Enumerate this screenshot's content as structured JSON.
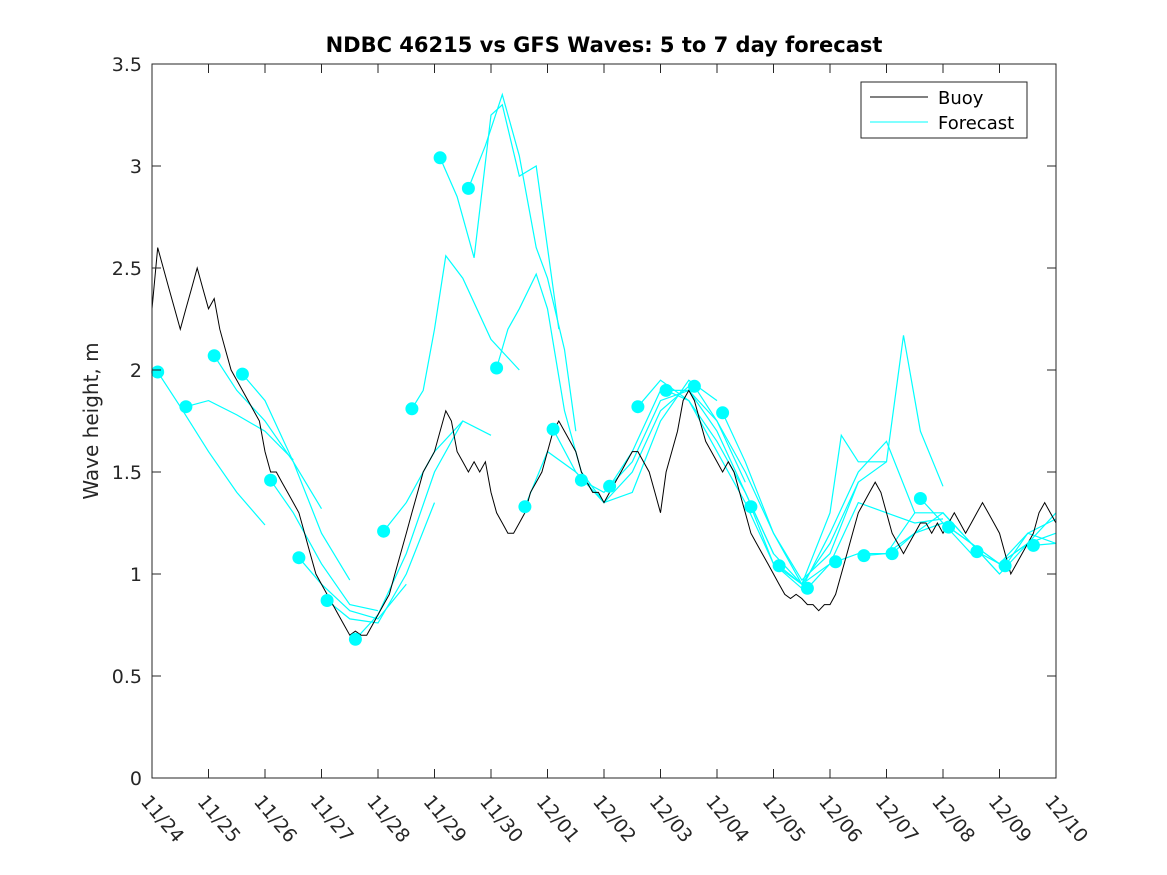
{
  "chart_data": {
    "type": "line",
    "title": "NDBC 46215 vs GFS Waves: 5 to 7 day forecast",
    "xlabel": "",
    "ylabel": "Wave height, m",
    "xlim": [
      0,
      16
    ],
    "ylim": [
      0,
      3.5
    ],
    "x_tick_values": [
      0,
      1,
      2,
      3,
      4,
      5,
      6,
      7,
      8,
      9,
      10,
      11,
      12,
      13,
      14,
      15,
      16
    ],
    "x_tick_labels": [
      "11/24",
      "11/25",
      "11/26",
      "11/27",
      "11/28",
      "11/29",
      "11/30",
      "12/01",
      "12/02",
      "12/03",
      "12/04",
      "12/05",
      "12/06",
      "12/07",
      "12/08",
      "12/09",
      "12/10"
    ],
    "y_tick_values": [
      0,
      0.5,
      1,
      1.5,
      2,
      2.5,
      3,
      3.5
    ],
    "y_tick_labels": [
      "0",
      "0.5",
      "1",
      "1.5",
      "2",
      "2.5",
      "3",
      "3.5"
    ],
    "legend": {
      "placement": "top-right",
      "entries": [
        {
          "label": "Buoy",
          "color": "#000000"
        },
        {
          "label": "Forecast",
          "color": "#00ffff"
        }
      ]
    },
    "buoy_color": "#000000",
    "forecast_color": "#00ffff",
    "buoy": {
      "name": "Buoy",
      "points": [
        [
          0.0,
          2.3
        ],
        [
          0.1,
          2.6
        ],
        [
          0.2,
          2.5
        ],
        [
          0.3,
          2.4
        ],
        [
          0.4,
          2.3
        ],
        [
          0.5,
          2.2
        ],
        [
          0.6,
          2.3
        ],
        [
          0.7,
          2.4
        ],
        [
          0.8,
          2.5
        ],
        [
          0.9,
          2.4
        ],
        [
          1.0,
          2.3
        ],
        [
          1.1,
          2.35
        ],
        [
          1.2,
          2.2
        ],
        [
          1.3,
          2.1
        ],
        [
          1.4,
          2.0
        ],
        [
          1.5,
          1.95
        ],
        [
          1.6,
          1.9
        ],
        [
          1.7,
          1.85
        ],
        [
          1.8,
          1.8
        ],
        [
          1.9,
          1.75
        ],
        [
          2.0,
          1.6
        ],
        [
          2.1,
          1.5
        ],
        [
          2.2,
          1.5
        ],
        [
          2.3,
          1.45
        ],
        [
          2.4,
          1.4
        ],
        [
          2.5,
          1.35
        ],
        [
          2.6,
          1.3
        ],
        [
          2.7,
          1.2
        ],
        [
          2.8,
          1.1
        ],
        [
          2.9,
          1.0
        ],
        [
          3.0,
          0.95
        ],
        [
          3.1,
          0.9
        ],
        [
          3.2,
          0.85
        ],
        [
          3.3,
          0.8
        ],
        [
          3.4,
          0.75
        ],
        [
          3.5,
          0.7
        ],
        [
          3.6,
          0.72
        ],
        [
          3.7,
          0.7
        ],
        [
          3.8,
          0.7
        ],
        [
          3.9,
          0.75
        ],
        [
          4.0,
          0.8
        ],
        [
          4.1,
          0.85
        ],
        [
          4.2,
          0.9
        ],
        [
          4.3,
          1.0
        ],
        [
          4.4,
          1.1
        ],
        [
          4.5,
          1.2
        ],
        [
          4.6,
          1.3
        ],
        [
          4.7,
          1.4
        ],
        [
          4.8,
          1.5
        ],
        [
          4.9,
          1.55
        ],
        [
          5.0,
          1.6
        ],
        [
          5.1,
          1.7
        ],
        [
          5.2,
          1.8
        ],
        [
          5.3,
          1.75
        ],
        [
          5.4,
          1.6
        ],
        [
          5.5,
          1.55
        ],
        [
          5.6,
          1.5
        ],
        [
          5.7,
          1.55
        ],
        [
          5.8,
          1.5
        ],
        [
          5.9,
          1.55
        ],
        [
          6.0,
          1.4
        ],
        [
          6.1,
          1.3
        ],
        [
          6.2,
          1.25
        ],
        [
          6.3,
          1.2
        ],
        [
          6.4,
          1.2
        ],
        [
          6.5,
          1.25
        ],
        [
          6.6,
          1.3
        ],
        [
          6.7,
          1.4
        ],
        [
          6.8,
          1.45
        ],
        [
          6.9,
          1.5
        ],
        [
          7.0,
          1.6
        ],
        [
          7.1,
          1.7
        ],
        [
          7.2,
          1.75
        ],
        [
          7.3,
          1.7
        ],
        [
          7.4,
          1.65
        ],
        [
          7.5,
          1.6
        ],
        [
          7.6,
          1.5
        ],
        [
          7.7,
          1.45
        ],
        [
          7.8,
          1.4
        ],
        [
          7.9,
          1.4
        ],
        [
          8.0,
          1.35
        ],
        [
          8.1,
          1.4
        ],
        [
          8.2,
          1.45
        ],
        [
          8.3,
          1.5
        ],
        [
          8.4,
          1.55
        ],
        [
          8.5,
          1.6
        ],
        [
          8.6,
          1.6
        ],
        [
          8.7,
          1.55
        ],
        [
          8.8,
          1.5
        ],
        [
          8.9,
          1.4
        ],
        [
          9.0,
          1.3
        ],
        [
          9.1,
          1.5
        ],
        [
          9.2,
          1.6
        ],
        [
          9.3,
          1.7
        ],
        [
          9.4,
          1.85
        ],
        [
          9.5,
          1.9
        ],
        [
          9.6,
          1.85
        ],
        [
          9.7,
          1.75
        ],
        [
          9.8,
          1.65
        ],
        [
          9.9,
          1.6
        ],
        [
          10.0,
          1.55
        ],
        [
          10.1,
          1.5
        ],
        [
          10.2,
          1.55
        ],
        [
          10.3,
          1.5
        ],
        [
          10.4,
          1.4
        ],
        [
          10.5,
          1.3
        ],
        [
          10.6,
          1.2
        ],
        [
          10.7,
          1.15
        ],
        [
          10.8,
          1.1
        ],
        [
          10.9,
          1.05
        ],
        [
          11.0,
          1.0
        ],
        [
          11.1,
          0.95
        ],
        [
          11.2,
          0.9
        ],
        [
          11.3,
          0.88
        ],
        [
          11.4,
          0.9
        ],
        [
          11.5,
          0.88
        ],
        [
          11.6,
          0.85
        ],
        [
          11.7,
          0.85
        ],
        [
          11.8,
          0.82
        ],
        [
          11.9,
          0.85
        ],
        [
          12.0,
          0.85
        ],
        [
          12.1,
          0.9
        ],
        [
          12.2,
          1.0
        ],
        [
          12.3,
          1.1
        ],
        [
          12.4,
          1.2
        ],
        [
          12.5,
          1.3
        ],
        [
          12.6,
          1.35
        ],
        [
          12.7,
          1.4
        ],
        [
          12.8,
          1.45
        ],
        [
          12.9,
          1.4
        ],
        [
          13.0,
          1.3
        ],
        [
          13.1,
          1.2
        ],
        [
          13.2,
          1.15
        ],
        [
          13.3,
          1.1
        ],
        [
          13.4,
          1.15
        ],
        [
          13.5,
          1.2
        ],
        [
          13.6,
          1.25
        ],
        [
          13.7,
          1.25
        ],
        [
          13.8,
          1.2
        ],
        [
          13.9,
          1.25
        ],
        [
          14.0,
          1.2
        ],
        [
          14.1,
          1.25
        ],
        [
          14.2,
          1.3
        ],
        [
          14.3,
          1.25
        ],
        [
          14.4,
          1.2
        ],
        [
          14.5,
          1.25
        ],
        [
          14.6,
          1.3
        ],
        [
          14.7,
          1.35
        ],
        [
          14.8,
          1.3
        ],
        [
          14.9,
          1.25
        ],
        [
          15.0,
          1.2
        ],
        [
          15.1,
          1.1
        ],
        [
          15.2,
          1.0
        ],
        [
          15.3,
          1.05
        ],
        [
          15.4,
          1.1
        ],
        [
          15.5,
          1.15
        ],
        [
          15.6,
          1.2
        ],
        [
          15.7,
          1.3
        ],
        [
          15.8,
          1.35
        ],
        [
          15.9,
          1.3
        ],
        [
          16.0,
          1.25
        ]
      ]
    },
    "forecast_series": [
      {
        "name": "Forecast",
        "x": [
          0.1,
          0.5,
          1.0,
          1.5,
          2.0
        ],
        "y": [
          1.99,
          1.82,
          1.6,
          1.4,
          1.24
        ]
      },
      {
        "name": "Forecast",
        "x": [
          0.6,
          1.0,
          1.5,
          2.0,
          2.5
        ],
        "y": [
          1.82,
          1.85,
          1.78,
          1.7,
          1.56
        ]
      },
      {
        "name": "Forecast",
        "x": [
          1.1,
          1.5,
          2.0,
          2.5,
          3.0
        ],
        "y": [
          2.07,
          1.9,
          1.75,
          1.55,
          1.32
        ]
      },
      {
        "name": "Forecast",
        "x": [
          1.6,
          2.0,
          2.5,
          3.0,
          3.5
        ],
        "y": [
          1.98,
          1.85,
          1.55,
          1.2,
          0.97
        ]
      },
      {
        "name": "Forecast",
        "x": [
          2.1,
          2.5,
          3.0,
          3.5,
          4.0
        ],
        "y": [
          1.46,
          1.3,
          1.05,
          0.85,
          0.82
        ]
      },
      {
        "name": "Forecast",
        "x": [
          2.6,
          3.0,
          3.5,
          4.0,
          4.5
        ],
        "y": [
          1.08,
          0.95,
          0.82,
          0.78,
          0.95
        ]
      },
      {
        "name": "Forecast",
        "x": [
          3.1,
          3.5,
          4.0,
          4.5,
          5.0
        ],
        "y": [
          0.87,
          0.78,
          0.76,
          1.0,
          1.35
        ]
      },
      {
        "name": "Forecast",
        "x": [
          3.6,
          4.0,
          4.5,
          5.0,
          5.5
        ],
        "y": [
          0.68,
          0.8,
          1.1,
          1.5,
          1.75
        ]
      },
      {
        "name": "Forecast",
        "x": [
          4.1,
          4.5,
          5.0,
          5.5,
          6.0
        ],
        "y": [
          1.21,
          1.35,
          1.6,
          1.75,
          1.68
        ]
      },
      {
        "name": "Forecast",
        "x": [
          4.6,
          4.8,
          5.0,
          5.2,
          5.5,
          6.0,
          6.5
        ],
        "y": [
          1.81,
          1.9,
          2.2,
          2.56,
          2.45,
          2.15,
          2.0
        ]
      },
      {
        "name": "Forecast",
        "x": [
          5.1,
          5.4,
          5.7,
          6.0,
          6.2,
          6.5,
          6.8,
          7.0,
          7.2
        ],
        "y": [
          3.04,
          2.85,
          2.55,
          3.25,
          3.3,
          2.95,
          3.0,
          2.6,
          2.2
        ]
      },
      {
        "name": "Forecast",
        "x": [
          5.6,
          5.9,
          6.2,
          6.5,
          6.8,
          7.0,
          7.3,
          7.5
        ],
        "y": [
          2.89,
          3.1,
          3.35,
          3.05,
          2.6,
          2.45,
          2.1,
          1.7
        ]
      },
      {
        "name": "Forecast",
        "x": [
          6.1,
          6.3,
          6.5,
          6.8,
          7.0,
          7.3,
          7.6,
          8.0
        ],
        "y": [
          2.01,
          2.2,
          2.3,
          2.47,
          2.3,
          1.8,
          1.5,
          1.35
        ]
      },
      {
        "name": "Forecast",
        "x": [
          6.6,
          7.0,
          7.5,
          8.0,
          8.5,
          9.0,
          9.5
        ],
        "y": [
          1.33,
          1.6,
          1.5,
          1.35,
          1.5,
          1.8,
          1.92
        ]
      },
      {
        "name": "Forecast",
        "x": [
          7.1,
          7.5,
          8.0,
          8.5,
          9.0,
          9.5,
          10.0
        ],
        "y": [
          1.71,
          1.5,
          1.35,
          1.4,
          1.75,
          1.95,
          1.85
        ]
      },
      {
        "name": "Forecast",
        "x": [
          7.6,
          8.0,
          8.5,
          9.0,
          9.5,
          10.0,
          10.5
        ],
        "y": [
          1.46,
          1.4,
          1.55,
          1.85,
          1.9,
          1.75,
          1.45
        ]
      },
      {
        "name": "Forecast",
        "x": [
          8.1,
          8.5,
          9.0,
          9.5,
          10.0,
          10.5,
          11.0
        ],
        "y": [
          1.43,
          1.6,
          1.9,
          1.9,
          1.7,
          1.4,
          1.1
        ]
      },
      {
        "name": "Forecast",
        "x": [
          8.6,
          9.0,
          9.5,
          10.0,
          10.5,
          11.0,
          11.5
        ],
        "y": [
          1.82,
          1.95,
          1.85,
          1.6,
          1.35,
          1.05,
          0.95
        ]
      },
      {
        "name": "Forecast",
        "x": [
          9.1,
          9.5,
          10.0,
          10.5,
          11.0,
          11.5,
          12.0
        ],
        "y": [
          1.9,
          1.85,
          1.65,
          1.4,
          1.1,
          0.95,
          1.05
        ]
      },
      {
        "name": "Forecast",
        "x": [
          9.6,
          10.0,
          10.5,
          11.0,
          11.5,
          12.0,
          12.5
        ],
        "y": [
          1.92,
          1.75,
          1.5,
          1.2,
          0.97,
          1.1,
          1.45
        ]
      },
      {
        "name": "Forecast",
        "x": [
          10.1,
          10.5,
          11.0,
          11.5,
          12.0,
          12.2,
          12.5,
          13.0
        ],
        "y": [
          1.79,
          1.55,
          1.2,
          0.95,
          1.3,
          1.68,
          1.55,
          1.55
        ]
      },
      {
        "name": "Forecast",
        "x": [
          10.6,
          11.0,
          11.5,
          12.0,
          12.5,
          13.0,
          13.5
        ],
        "y": [
          1.33,
          1.05,
          0.93,
          1.2,
          1.5,
          1.65,
          1.3
        ]
      },
      {
        "name": "Forecast",
        "x": [
          11.1,
          11.5,
          12.0,
          12.5,
          13.0,
          13.3,
          13.6,
          14.0
        ],
        "y": [
          1.04,
          0.95,
          1.15,
          1.45,
          1.55,
          2.17,
          1.7,
          1.43
        ]
      },
      {
        "name": "Forecast",
        "x": [
          11.6,
          12.0,
          12.5,
          13.0,
          13.5,
          14.0
        ],
        "y": [
          0.93,
          1.05,
          1.35,
          1.3,
          1.25,
          1.27
        ]
      },
      {
        "name": "Forecast",
        "x": [
          12.1,
          12.5,
          13.0,
          13.5,
          14.0,
          14.5
        ],
        "y": [
          1.06,
          1.1,
          1.1,
          1.2,
          1.25,
          1.1
        ]
      },
      {
        "name": "Forecast",
        "x": [
          12.6,
          13.0,
          13.5,
          14.0,
          14.5,
          15.0
        ],
        "y": [
          1.09,
          1.1,
          1.3,
          1.3,
          1.15,
          1.0
        ]
      },
      {
        "name": "Forecast",
        "x": [
          13.1,
          13.5,
          14.0,
          14.5,
          15.0,
          15.5
        ],
        "y": [
          1.1,
          1.2,
          1.3,
          1.15,
          1.05,
          1.15
        ]
      },
      {
        "name": "Forecast",
        "x": [
          13.6,
          14.0,
          14.5,
          15.0,
          15.5,
          16.0
        ],
        "y": [
          1.37,
          1.25,
          1.15,
          1.0,
          1.15,
          1.3
        ]
      },
      {
        "name": "Forecast",
        "x": [
          14.1,
          14.5,
          15.0,
          15.5,
          16.0
        ],
        "y": [
          1.23,
          1.15,
          1.05,
          1.2,
          1.27
        ]
      },
      {
        "name": "Forecast",
        "x": [
          14.6,
          15.0,
          15.5,
          16.0
        ],
        "y": [
          1.11,
          1.05,
          1.15,
          1.2
        ]
      },
      {
        "name": "Forecast",
        "x": [
          15.1,
          15.5,
          16.0
        ],
        "y": [
          1.04,
          1.2,
          1.15
        ]
      },
      {
        "name": "Forecast",
        "x": [
          15.6,
          16.0
        ],
        "y": [
          1.14,
          1.15
        ]
      }
    ],
    "forecast_markers": [
      [
        0.1,
        1.99
      ],
      [
        0.6,
        1.82
      ],
      [
        1.1,
        2.07
      ],
      [
        1.6,
        1.98
      ],
      [
        2.1,
        1.46
      ],
      [
        2.6,
        1.08
      ],
      [
        3.1,
        0.87
      ],
      [
        3.6,
        0.68
      ],
      [
        4.1,
        1.21
      ],
      [
        4.6,
        1.81
      ],
      [
        5.1,
        3.04
      ],
      [
        5.6,
        2.89
      ],
      [
        6.1,
        2.01
      ],
      [
        6.6,
        1.33
      ],
      [
        7.1,
        1.71
      ],
      [
        7.6,
        1.46
      ],
      [
        8.1,
        1.43
      ],
      [
        8.6,
        1.82
      ],
      [
        9.1,
        1.9
      ],
      [
        9.6,
        1.92
      ],
      [
        10.1,
        1.79
      ],
      [
        10.6,
        1.33
      ],
      [
        11.1,
        1.04
      ],
      [
        11.6,
        0.93
      ],
      [
        12.1,
        1.06
      ],
      [
        12.6,
        1.09
      ],
      [
        13.1,
        1.1
      ],
      [
        13.6,
        1.37
      ],
      [
        14.1,
        1.23
      ],
      [
        14.6,
        1.11
      ],
      [
        15.1,
        1.04
      ],
      [
        15.6,
        1.14
      ]
    ]
  }
}
